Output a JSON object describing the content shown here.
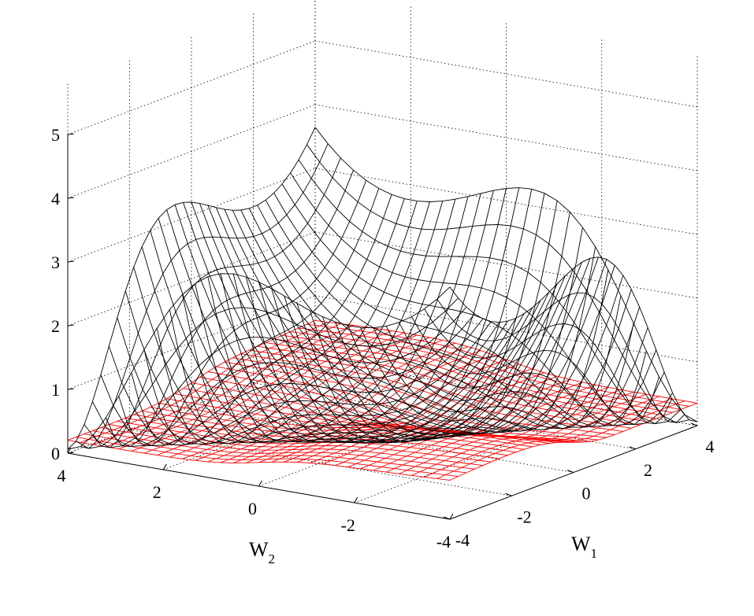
{
  "chart_data": {
    "type": "surface",
    "title": "",
    "x_axis": {
      "label": "W",
      "label_subscript": "1",
      "range": [
        -4,
        4
      ],
      "ticks": [
        -4,
        -2,
        0,
        2,
        4
      ],
      "tick_labels": [
        "-4",
        "-2",
        "0",
        "2",
        "4"
      ]
    },
    "y_axis": {
      "label": "W",
      "label_subscript": "2",
      "range": [
        -4,
        4
      ],
      "ticks": [
        4,
        2,
        0,
        -2,
        -4
      ],
      "tick_labels": [
        "4",
        "2",
        "0",
        "-2",
        "-4"
      ]
    },
    "z_axis": {
      "label": "",
      "range": [
        0,
        5
      ],
      "ticks": [
        0,
        1,
        2,
        3,
        4,
        5
      ],
      "tick_labels": [
        "0",
        "1",
        "2",
        "3",
        "4",
        "5"
      ]
    },
    "grid": true,
    "legend": "none",
    "mesh_resolution": 31,
    "series": [
      {
        "style": "wireframe",
        "color": "#ff0000",
        "surface": "low",
        "description_points": {
          "z_at_origin": 0.5,
          "z_range": [
            0.1,
            0.9
          ]
        }
      },
      {
        "style": "wireframe",
        "color": "#000000",
        "surface": "high",
        "description_points": {
          "z_at_origin": 0.1,
          "z_max": 5.4,
          "z_range": [
            0.05,
            5.4
          ]
        }
      }
    ]
  }
}
